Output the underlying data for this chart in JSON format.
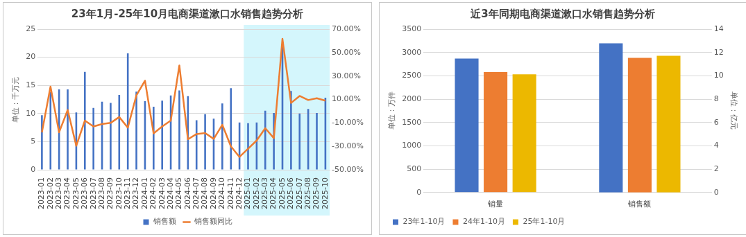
{
  "chart_data": [
    {
      "type": "bar",
      "title": "23年1月-25年10月电商渠道漱口水销售趋势分析",
      "ylabel": "单位：千万元",
      "categories": [
        "2023-01",
        "2023-02",
        "2023-03",
        "2023-04",
        "2023-05",
        "2023-06",
        "2023-07",
        "2023-08",
        "2023-09",
        "2023-10",
        "2023-11",
        "2023-12",
        "2024-01",
        "2024-02",
        "2024-03",
        "2024-04",
        "2024-05",
        "2024-06",
        "2024-07",
        "2024-08",
        "2024-09",
        "2024-10",
        "2024-11",
        "2024-12",
        "2025-01",
        "2025-02",
        "2025-03",
        "2025-04",
        "2025-05",
        "2025-06",
        "2025-07",
        "2025-08",
        "2025-09",
        "2025-10"
      ],
      "series": [
        {
          "name": "销售额",
          "color": "#4472c4",
          "values": [
            9.7,
            13.8,
            14.3,
            14.3,
            10.2,
            17.4,
            11.0,
            12.1,
            11.9,
            13.3,
            20.7,
            13.9,
            12.2,
            11.2,
            12.3,
            13.2,
            14.1,
            13.1,
            8.8,
            9.9,
            9.1,
            11.8,
            14.5,
            8.4,
            8.3,
            8.4,
            10.5,
            10.1,
            21.8,
            14.0,
            10.0,
            10.8,
            10.1,
            12.8
          ]
        },
        {
          "name": "销售额同比",
          "type": "line",
          "axis": "y2",
          "color": "#ed7d31",
          "values": [
            -18,
            21,
            -18,
            1,
            -29.5,
            -8,
            -13,
            -11,
            -10,
            -5,
            -14,
            13.5,
            26,
            -19,
            -13,
            -8,
            39,
            -24,
            -19.5,
            -18.7,
            -23.6,
            -11.6,
            -30,
            -39,
            -32,
            -25,
            -14.5,
            -23,
            61.7,
            7,
            13,
            9.5,
            11,
            9
          ]
        }
      ],
      "ylim": [
        0,
        25
      ],
      "yticks": [
        0,
        5,
        10,
        15,
        20,
        25
      ],
      "y2lim": [
        -50,
        70
      ],
      "y2ticks": [
        {
          "value": -50,
          "label": "-50.00%"
        },
        {
          "value": -30,
          "label": "-30.00%"
        },
        {
          "value": -10,
          "label": "-10.00%"
        },
        {
          "value": 10,
          "label": "10.00%"
        },
        {
          "value": 30,
          "label": "30.00%"
        },
        {
          "value": 50,
          "label": "50.00%"
        },
        {
          "value": 70,
          "label": "70.00%"
        }
      ],
      "bands": [
        {
          "axis": "x",
          "from": "2025-01",
          "to": "2025-10",
          "color": "#d4f6fc"
        }
      ],
      "grid": "y",
      "legend": "bottom",
      "marker": "none"
    },
    {
      "type": "bar",
      "title": "近3年同期电商渠道漱口水销售趋势分析",
      "ylabel": "单位：万件",
      "y2label": "单位：亿元",
      "categories": [
        "销量",
        "销售额"
      ],
      "series": [
        {
          "name": "23年1-10月",
          "color": "#4472c4",
          "values": [
            2870,
            null
          ]
        },
        {
          "name": "24年1-10月",
          "color": "#ed7d31",
          "values": [
            2580,
            null
          ]
        },
        {
          "name": "25年1-10月",
          "color": "#ecb800",
          "values": [
            2530,
            null
          ]
        },
        {
          "axis": "y2",
          "color": "#4472c4",
          "values": [
            null,
            12.78
          ]
        },
        {
          "axis": "y2",
          "color": "#ed7d31",
          "values": [
            null,
            11.53
          ]
        },
        {
          "axis": "y2",
          "color": "#ecb800",
          "values": [
            null,
            11.71
          ]
        }
      ],
      "ylim": [
        0,
        3500
      ],
      "yticks": [
        0,
        500,
        1000,
        1500,
        2000,
        2500,
        3000,
        3500
      ],
      "y2lim": [
        0,
        14
      ],
      "y2ticks": [
        0,
        2,
        4,
        6,
        8,
        10,
        12,
        14
      ],
      "grid": "y",
      "legend": "bottom left"
    }
  ]
}
